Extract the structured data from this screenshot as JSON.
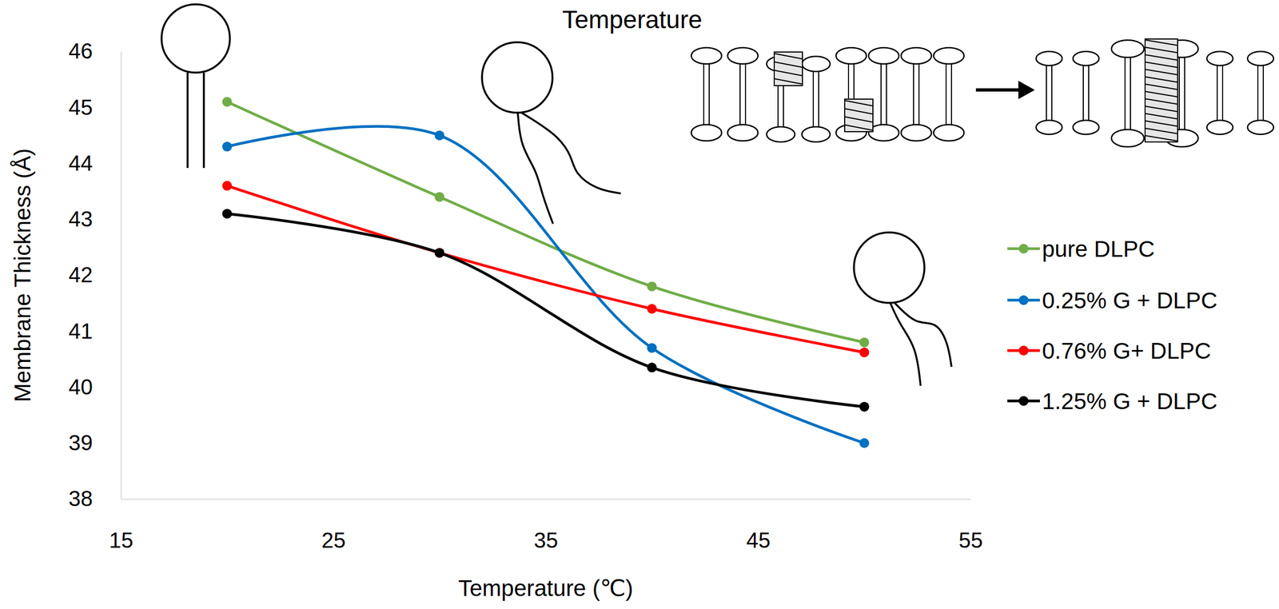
{
  "chart_data": {
    "type": "line",
    "title": "Temperature",
    "x_label": "Temperature (℃)",
    "y_label": "Membrane Thickness (Å)",
    "x": [
      20,
      30,
      40,
      50
    ],
    "series": [
      {
        "name": "pure DLPC",
        "color": "#70ad47",
        "values": [
          45.1,
          43.4,
          41.8,
          40.8
        ]
      },
      {
        "name": "0.25% G + DLPC",
        "color": "#0070c0",
        "values": [
          44.3,
          44.5,
          40.7,
          39.0
        ]
      },
      {
        "name": "0.76% G+ DLPC",
        "color": "#ff0000",
        "values": [
          43.6,
          42.4,
          41.4,
          40.62
        ]
      },
      {
        "name": "1.25% G + DLPC",
        "color": "#000000",
        "values": [
          43.1,
          42.4,
          40.35,
          39.65
        ]
      }
    ],
    "xlim": [
      15,
      55
    ],
    "xticks": [
      15,
      25,
      35,
      45,
      55
    ],
    "ylim": [
      38,
      46
    ],
    "yticks": [
      38,
      39,
      40,
      41,
      42,
      43,
      44,
      45,
      46
    ],
    "grid": false,
    "legend": "right",
    "line_style": "smooth",
    "marker": "circle"
  }
}
